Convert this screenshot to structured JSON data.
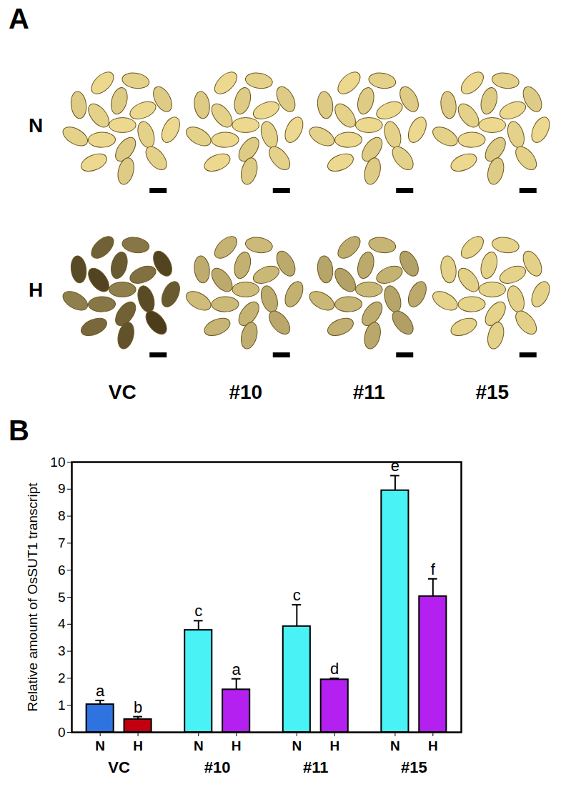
{
  "panel_a": {
    "label": "A",
    "rows": [
      "N",
      "H"
    ],
    "columns": [
      "VC",
      "#10",
      "#11",
      "#15"
    ]
  },
  "chart_data": {
    "type": "bar",
    "panel_label": "B",
    "ylabel": "Relative amount of OsSUT1 transcript",
    "groups": [
      "VC",
      "#10",
      "#11",
      "#15"
    ],
    "categories": [
      "N",
      "H",
      "N",
      "H",
      "N",
      "H",
      "N",
      "H"
    ],
    "values": [
      1.03,
      0.48,
      3.78,
      1.58,
      3.92,
      1.95,
      8.95,
      5.03
    ],
    "errors": [
      0.15,
      0.1,
      0.35,
      0.4,
      0.8,
      0.05,
      0.55,
      0.65
    ],
    "annotations": [
      "a",
      "b",
      "c",
      "a",
      "c",
      "d",
      "e",
      "f"
    ],
    "colors": [
      "#2f73e0",
      "#c00010",
      "#48f2f5",
      "#b320ef",
      "#48f2f5",
      "#b320ef",
      "#48f2f5",
      "#b320ef"
    ],
    "ylim": [
      0,
      10
    ],
    "yticks": [
      0,
      1,
      2,
      3,
      4,
      5,
      6,
      7,
      8,
      9,
      10
    ],
    "grid": false
  }
}
